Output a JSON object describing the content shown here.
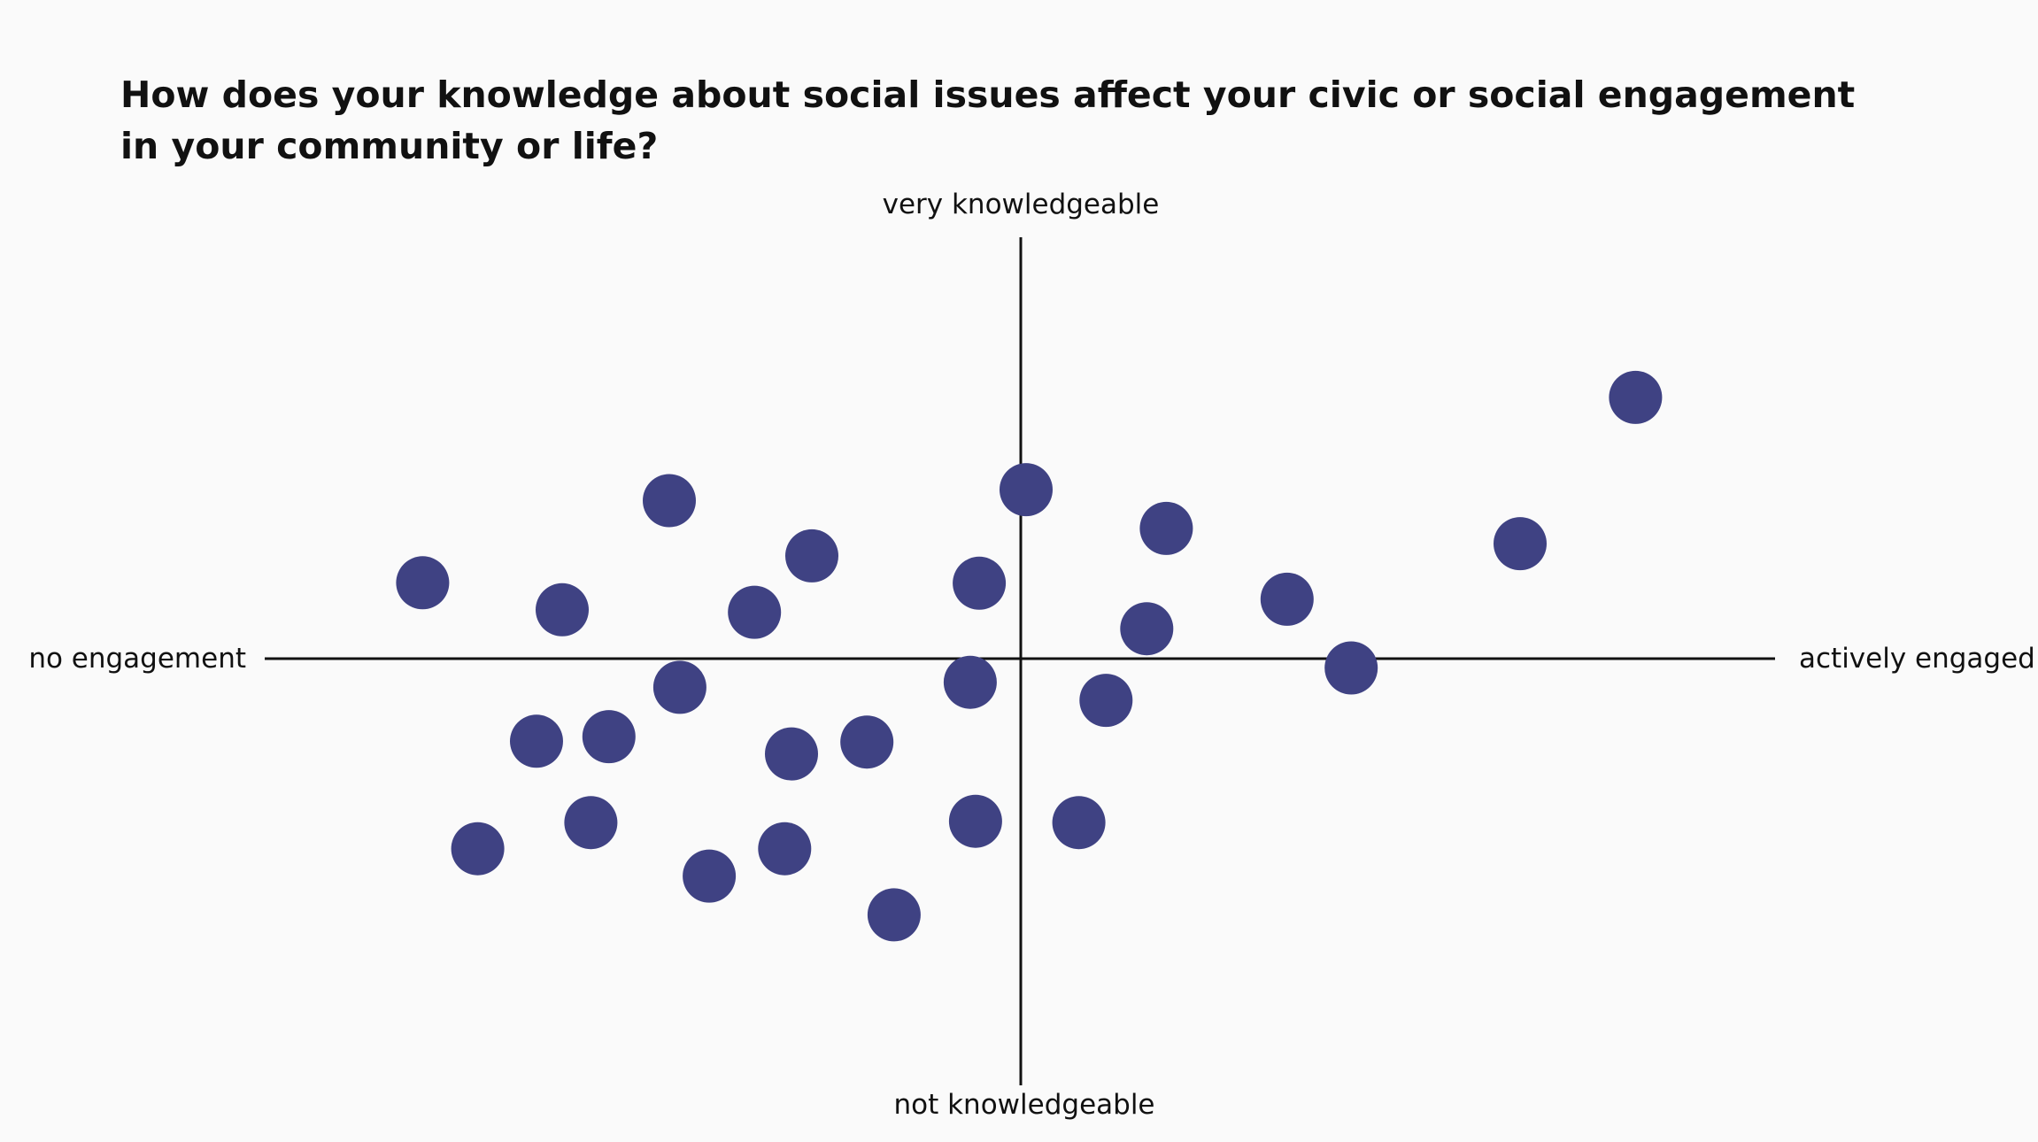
{
  "question": "How does your knowledge about social issues affect your civic or social engagement in your community or life?",
  "colors": {
    "background": "#fafafa",
    "axis": "#111111",
    "dot": "#3f4283",
    "text": "#111111"
  },
  "chart_data": {
    "type": "scatter",
    "title": "How does your knowledge about social issues affect your civic or social engagement in your community or life?",
    "x_axis": {
      "low_label": "no engagement",
      "high_label": "actively engaged",
      "range": [
        -1,
        1
      ]
    },
    "y_axis": {
      "low_label": "not knowledgeable",
      "high_label": "very knowledgeable",
      "range": [
        -1,
        1
      ]
    },
    "grid": false,
    "points": [
      {
        "x": 0.815,
        "y": 0.62
      },
      {
        "x": 0.662,
        "y": 0.273
      },
      {
        "x": 0.438,
        "y": -0.022
      },
      {
        "x": 0.353,
        "y": 0.141
      },
      {
        "x": 0.193,
        "y": 0.309
      },
      {
        "x": 0.167,
        "y": 0.071
      },
      {
        "x": 0.113,
        "y": -0.099
      },
      {
        "x": 0.077,
        "y": -0.389
      },
      {
        "x": 0.007,
        "y": 0.401
      },
      {
        "x": -0.055,
        "y": 0.179
      },
      {
        "x": -0.067,
        "y": -0.056
      },
      {
        "x": -0.06,
        "y": -0.386
      },
      {
        "x": -0.168,
        "y": -0.608
      },
      {
        "x": -0.204,
        "y": -0.198
      },
      {
        "x": -0.277,
        "y": 0.244
      },
      {
        "x": -0.304,
        "y": -0.226
      },
      {
        "x": -0.353,
        "y": 0.11
      },
      {
        "x": -0.313,
        "y": -0.451
      },
      {
        "x": -0.413,
        "y": -0.516
      },
      {
        "x": -0.452,
        "y": -0.068
      },
      {
        "x": -0.466,
        "y": 0.375
      },
      {
        "x": -0.546,
        "y": -0.185
      },
      {
        "x": -0.608,
        "y": 0.116
      },
      {
        "x": -0.642,
        "y": -0.196
      },
      {
        "x": -0.57,
        "y": -0.389
      },
      {
        "x": -0.72,
        "y": -0.451
      },
      {
        "x": -0.793,
        "y": 0.18
      }
    ]
  }
}
